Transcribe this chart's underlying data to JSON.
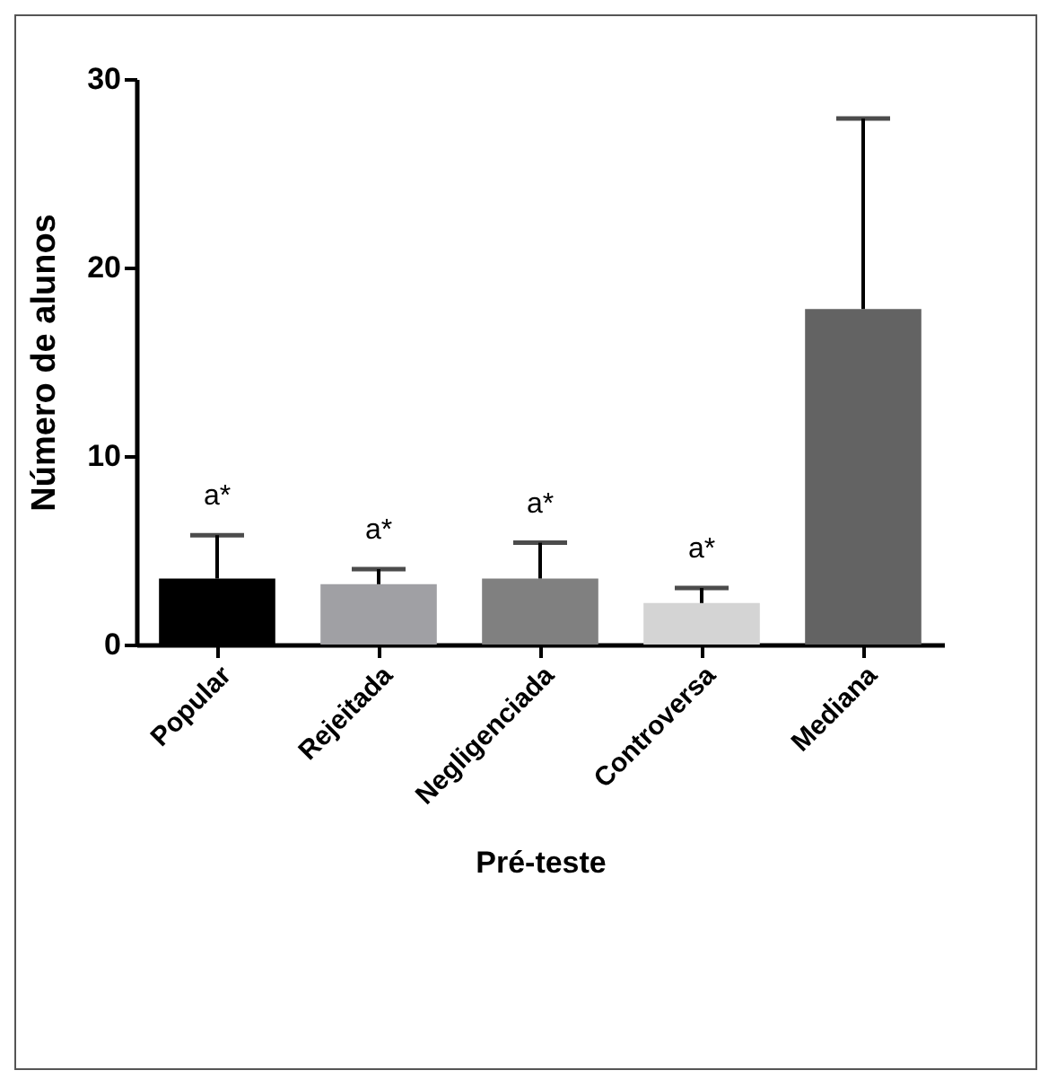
{
  "chart_data": {
    "type": "bar",
    "xlabel": "Pré-teste",
    "ylabel": "Número de alunos",
    "categories": [
      "Popular",
      "Rejeitada",
      "Negligenciada",
      "Controversa",
      "Mediana"
    ],
    "values": [
      3.5,
      3.2,
      3.5,
      2.2,
      17.8
    ],
    "colors": [
      "#000000",
      "#a0a0a4",
      "#808080",
      "#d4d4d4",
      "#636363"
    ],
    "errors": [
      [
        3.5,
        5.8
      ],
      [
        3.2,
        4.0
      ],
      [
        3.5,
        5.4
      ],
      [
        2.2,
        3.0
      ],
      [
        17.8,
        27.9
      ]
    ],
    "ylim": [
      0,
      30
    ],
    "yticks": [
      0,
      10,
      20,
      30
    ],
    "grid": false,
    "legend": false,
    "annotations": [
      {
        "text": "a*",
        "x": "Popular",
        "y": 5.8
      },
      {
        "text": "a*",
        "x": "Rejeitada",
        "y": 4.0
      },
      {
        "text": "a*",
        "x": "Negligenciada",
        "y": 5.4
      },
      {
        "text": "a*",
        "x": "Controversa",
        "y": 3.0
      }
    ]
  }
}
